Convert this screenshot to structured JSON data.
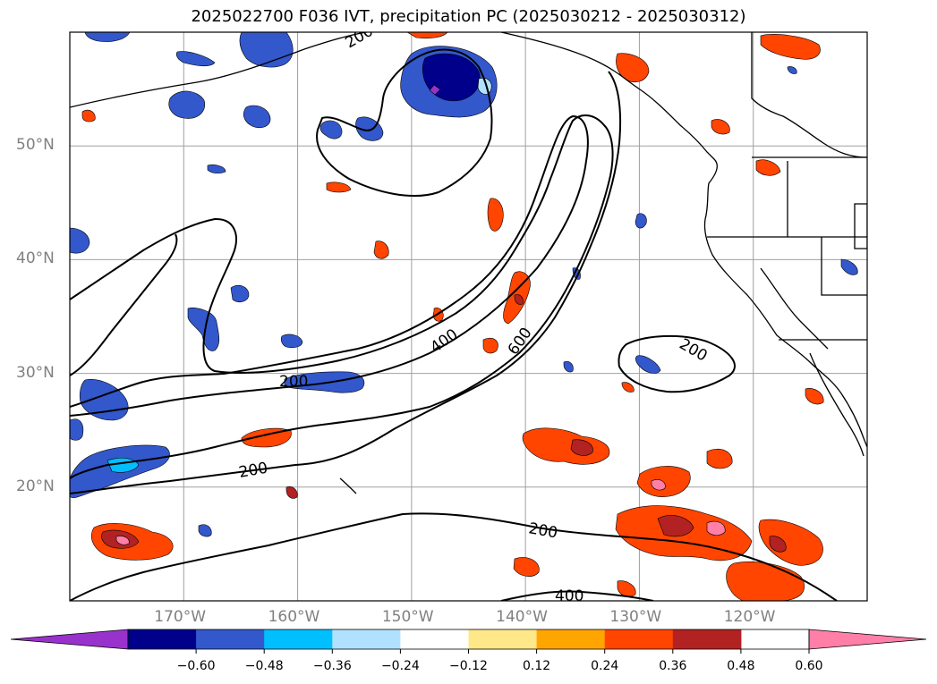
{
  "title": "2025022700 F036 IVT, precipitation PC (2025030212 - 2025030312)",
  "axes": {
    "lat_labels": [
      "50°N",
      "40°N",
      "30°N",
      "20°N"
    ],
    "lon_labels": [
      "170°W",
      "160°W",
      "150°W",
      "140°W",
      "130°W",
      "120°W"
    ],
    "lat_values": [
      50,
      40,
      30,
      20
    ],
    "lon_values": [
      -170,
      -160,
      -150,
      -140,
      -130,
      -120
    ],
    "lon_range": [
      -180,
      -110
    ],
    "lat_range": [
      10,
      60
    ],
    "grid": true
  },
  "ivt_contour_labels": [
    "200",
    "200",
    "200",
    "200",
    "200",
    "400",
    "600",
    "400"
  ],
  "colorbar": {
    "ticks": [
      "−0.60",
      "−0.48",
      "−0.36",
      "−0.24",
      "−0.12",
      "0.12",
      "0.24",
      "0.36",
      "0.48",
      "0.60"
    ],
    "colors": [
      "#9932cc",
      "#00008b",
      "#3358cc",
      "#00bfff",
      "#b0e2ff",
      "#ffffff",
      "#ffe88a",
      "#ffa500",
      "#ff4500",
      "#b22222",
      "#ff7fa8"
    ],
    "extend": "both"
  },
  "colors": {
    "grid": "#a0a0a0",
    "label_gray": "#808080",
    "contour": "#000000"
  }
}
